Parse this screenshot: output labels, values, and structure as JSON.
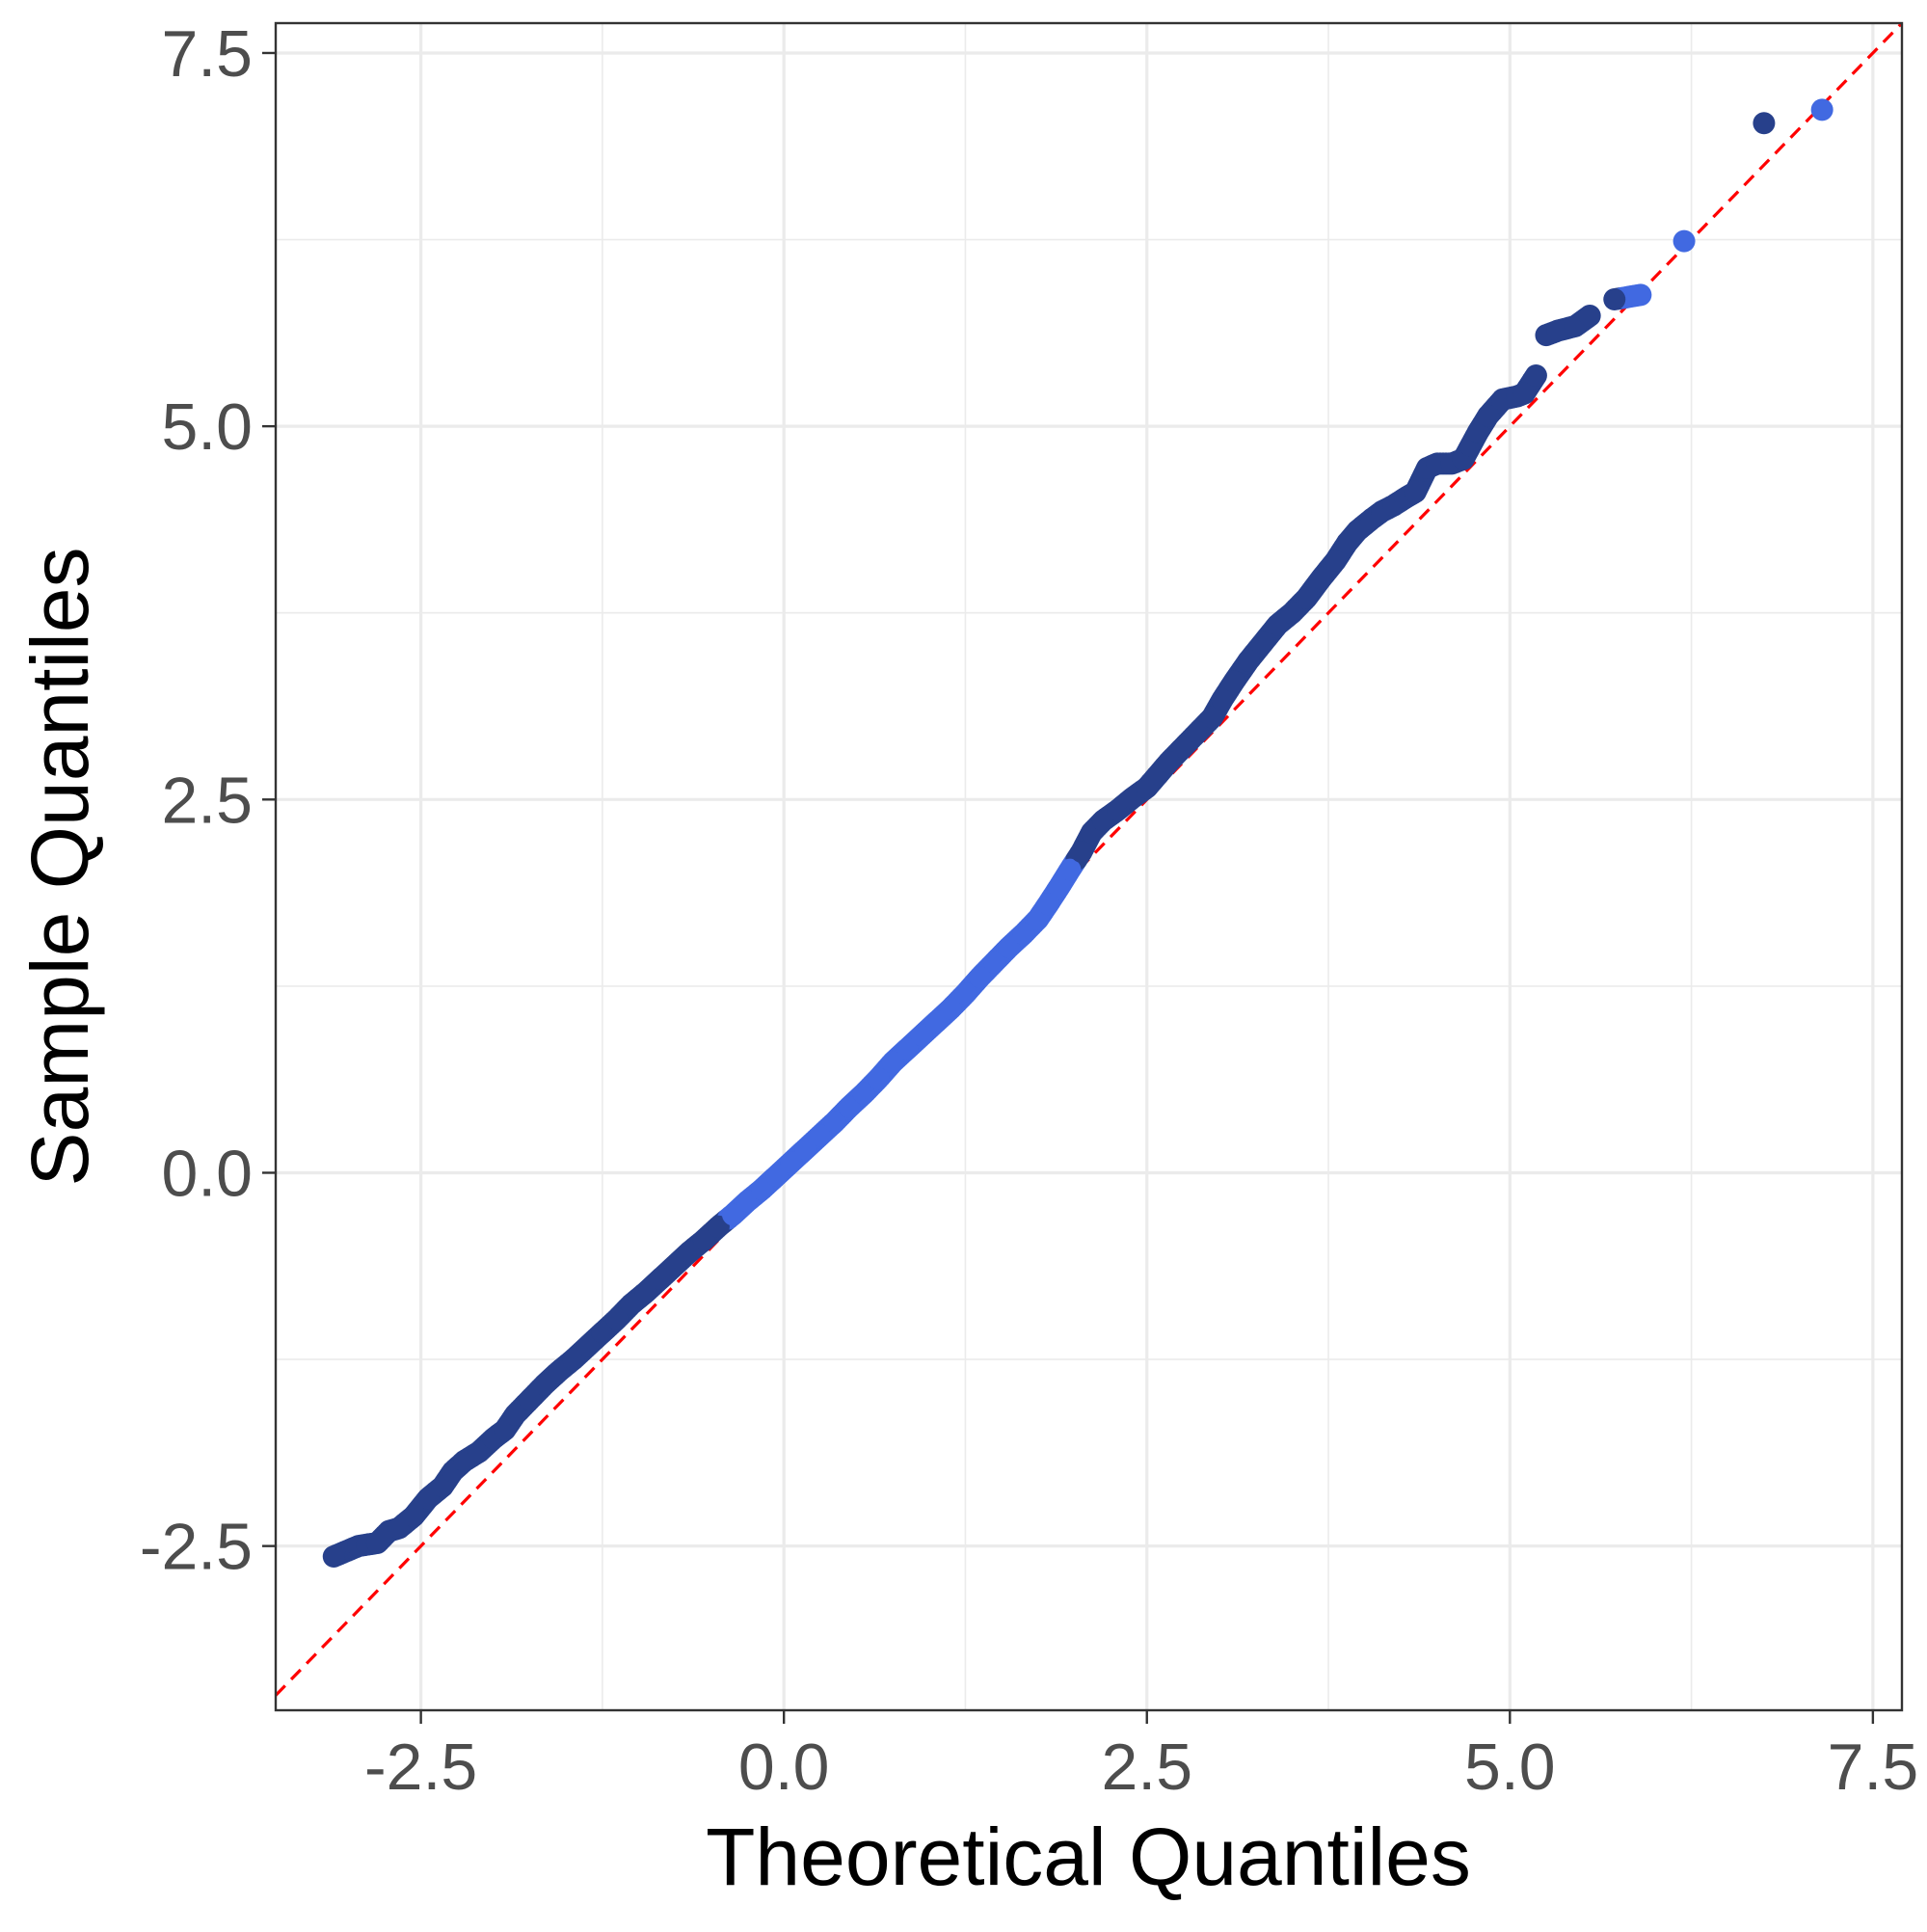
{
  "chart_data": {
    "type": "scatter",
    "title": "",
    "xlabel": "Theoretical Quantiles",
    "ylabel": "Sample Quantiles",
    "xlim": [
      -3.5,
      7.7
    ],
    "ylim": [
      -3.6,
      7.7
    ],
    "x_ticks": [
      -2.5,
      0.0,
      2.5,
      5.0,
      7.5
    ],
    "x_tick_labels": [
      "-2.5",
      "0.0",
      "2.5",
      "5.0",
      "7.5"
    ],
    "y_ticks": [
      -2.5,
      0.0,
      2.5,
      5.0,
      7.5
    ],
    "y_tick_labels": [
      "-2.5",
      "0.0",
      "2.5",
      "5.0",
      "7.5"
    ],
    "grid": true,
    "reference_line": {
      "slope": 1,
      "intercept": 0,
      "style": "dashed",
      "color": "#ff0000"
    },
    "colors": {
      "point_light": "#4169e1",
      "point_dark": "#27408b",
      "reference": "#ff0000"
    },
    "series": [
      {
        "points": [
          [
            -3.1,
            -2.57
          ],
          [
            -2.93,
            -2.5
          ],
          [
            -2.87,
            -2.49
          ],
          [
            -2.8,
            -2.48
          ],
          [
            -2.72,
            -2.4
          ],
          [
            -2.65,
            -2.38
          ],
          [
            -2.55,
            -2.3
          ],
          [
            -2.45,
            -2.18
          ],
          [
            -2.35,
            -2.1
          ],
          [
            -2.28,
            -2.0
          ],
          [
            -2.2,
            -1.93
          ],
          [
            -2.1,
            -1.87
          ],
          [
            -2.0,
            -1.78
          ],
          [
            -1.92,
            -1.72
          ],
          [
            -1.85,
            -1.62
          ],
          [
            -1.75,
            -1.52
          ],
          [
            -1.65,
            -1.42
          ],
          [
            -1.55,
            -1.33
          ],
          [
            -1.45,
            -1.25
          ],
          [
            -1.35,
            -1.16
          ],
          [
            -1.25,
            -1.07
          ],
          [
            -1.15,
            -0.98
          ],
          [
            -1.05,
            -0.88
          ],
          [
            -0.95,
            -0.8
          ],
          [
            -0.85,
            -0.71
          ],
          [
            -0.75,
            -0.62
          ],
          [
            -0.65,
            -0.53
          ],
          [
            -0.55,
            -0.45
          ],
          [
            -0.45,
            -0.36
          ],
          [
            -0.35,
            -0.28
          ],
          [
            -0.25,
            -0.19
          ],
          [
            -0.15,
            -0.11
          ],
          [
            -0.05,
            -0.02
          ],
          [
            0.05,
            0.07
          ],
          [
            0.15,
            0.16
          ],
          [
            0.25,
            0.25
          ],
          [
            0.35,
            0.34
          ],
          [
            0.45,
            0.44
          ],
          [
            0.55,
            0.53
          ],
          [
            0.65,
            0.63
          ],
          [
            0.75,
            0.74
          ],
          [
            0.85,
            0.83
          ],
          [
            0.95,
            0.92
          ],
          [
            1.05,
            1.01
          ],
          [
            1.15,
            1.1
          ],
          [
            1.25,
            1.2
          ],
          [
            1.35,
            1.31
          ],
          [
            1.45,
            1.41
          ],
          [
            1.55,
            1.51
          ],
          [
            1.65,
            1.6
          ],
          [
            1.75,
            1.7
          ],
          [
            1.82,
            1.8
          ],
          [
            1.9,
            1.92
          ],
          [
            1.97,
            2.03
          ],
          [
            2.05,
            2.15
          ],
          [
            2.12,
            2.28
          ],
          [
            2.2,
            2.36
          ],
          [
            2.3,
            2.43
          ],
          [
            2.4,
            2.51
          ],
          [
            2.5,
            2.58
          ],
          [
            2.58,
            2.67
          ],
          [
            2.65,
            2.75
          ],
          [
            2.75,
            2.85
          ],
          [
            2.85,
            2.95
          ],
          [
            2.95,
            3.05
          ],
          [
            3.02,
            3.17
          ],
          [
            3.1,
            3.29
          ],
          [
            3.2,
            3.43
          ],
          [
            3.3,
            3.55
          ],
          [
            3.4,
            3.67
          ],
          [
            3.5,
            3.75
          ],
          [
            3.6,
            3.85
          ],
          [
            3.7,
            3.98
          ],
          [
            3.8,
            4.1
          ],
          [
            3.88,
            4.22
          ],
          [
            3.95,
            4.3
          ],
          [
            4.05,
            4.38
          ],
          [
            4.12,
            4.43
          ],
          [
            4.2,
            4.47
          ],
          [
            4.28,
            4.52
          ],
          [
            4.35,
            4.56
          ],
          [
            4.43,
            4.72
          ],
          [
            4.5,
            4.75
          ],
          [
            4.6,
            4.75
          ],
          [
            4.68,
            4.78
          ],
          [
            4.73,
            4.87
          ],
          [
            4.78,
            4.96
          ],
          [
            4.85,
            5.07
          ],
          [
            4.95,
            5.18
          ],
          [
            5.05,
            5.2
          ],
          [
            5.1,
            5.22
          ],
          [
            5.18,
            5.34
          ],
          [
            5.25,
            5.61
          ],
          [
            5.33,
            5.64
          ],
          [
            5.45,
            5.67
          ],
          [
            5.55,
            5.74
          ],
          [
            5.72,
            5.85
          ],
          [
            5.9,
            5.88
          ],
          [
            6.2,
            6.24
          ],
          [
            6.75,
            7.03
          ],
          [
            7.15,
            7.12
          ]
        ]
      }
    ]
  }
}
